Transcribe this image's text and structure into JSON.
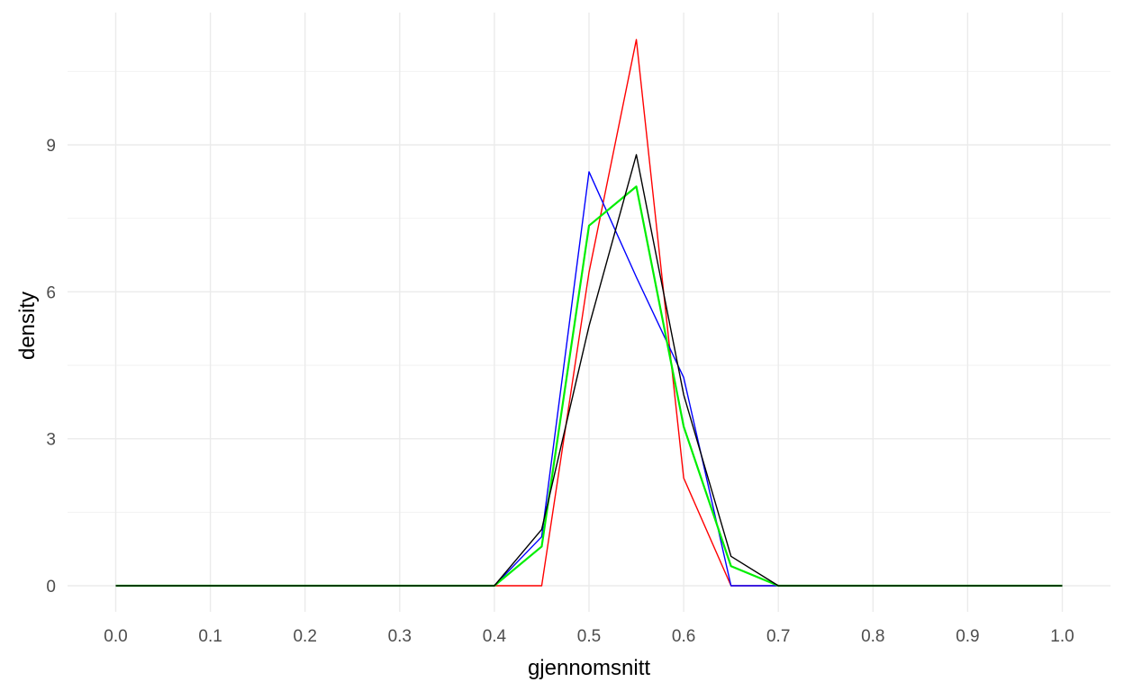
{
  "chart_data": {
    "type": "line",
    "xlabel": "gjennomsnitt",
    "ylabel": "density",
    "xlim": [
      0,
      1
    ],
    "ylim": [
      0,
      11.2
    ],
    "x_ticks": [
      0.0,
      0.1,
      0.2,
      0.3,
      0.4,
      0.5,
      0.6,
      0.7,
      0.8,
      0.9,
      1.0
    ],
    "x_tick_labels": [
      "0.0",
      "0.1",
      "0.2",
      "0.3",
      "0.4",
      "0.5",
      "0.6",
      "0.7",
      "0.8",
      "0.9",
      "1.0"
    ],
    "y_ticks": [
      0,
      3,
      6,
      9
    ],
    "y_tick_labels": [
      "0",
      "3",
      "6",
      "9"
    ],
    "grid": true,
    "legend": "none",
    "x": [
      0.0,
      0.05,
      0.1,
      0.15,
      0.2,
      0.25,
      0.3,
      0.35,
      0.4,
      0.45,
      0.5,
      0.55,
      0.6,
      0.65,
      0.7,
      0.75,
      0.8,
      0.85,
      0.9,
      0.95,
      1.0
    ],
    "series": [
      {
        "color": "#ff0000",
        "values": [
          0,
          0,
          0,
          0,
          0,
          0,
          0,
          0,
          0,
          0,
          6.4,
          11.15,
          2.2,
          0,
          0,
          0,
          0,
          0,
          0,
          0,
          0
        ]
      },
      {
        "color": "#0000ff",
        "values": [
          0,
          0,
          0,
          0,
          0,
          0,
          0,
          0,
          0,
          1.0,
          8.45,
          6.3,
          4.25,
          0,
          0,
          0,
          0,
          0,
          0,
          0,
          0
        ]
      },
      {
        "color": "#00ee00",
        "values": [
          0,
          0,
          0,
          0,
          0,
          0,
          0,
          0,
          0,
          0.8,
          7.35,
          8.15,
          3.25,
          0.4,
          0,
          0,
          0,
          0,
          0,
          0,
          0
        ]
      },
      {
        "color": "#000000",
        "values": [
          0,
          0,
          0,
          0,
          0,
          0,
          0,
          0,
          0,
          1.15,
          5.3,
          8.8,
          3.9,
          0.6,
          0,
          0,
          0,
          0,
          0,
          0,
          0
        ]
      }
    ]
  }
}
